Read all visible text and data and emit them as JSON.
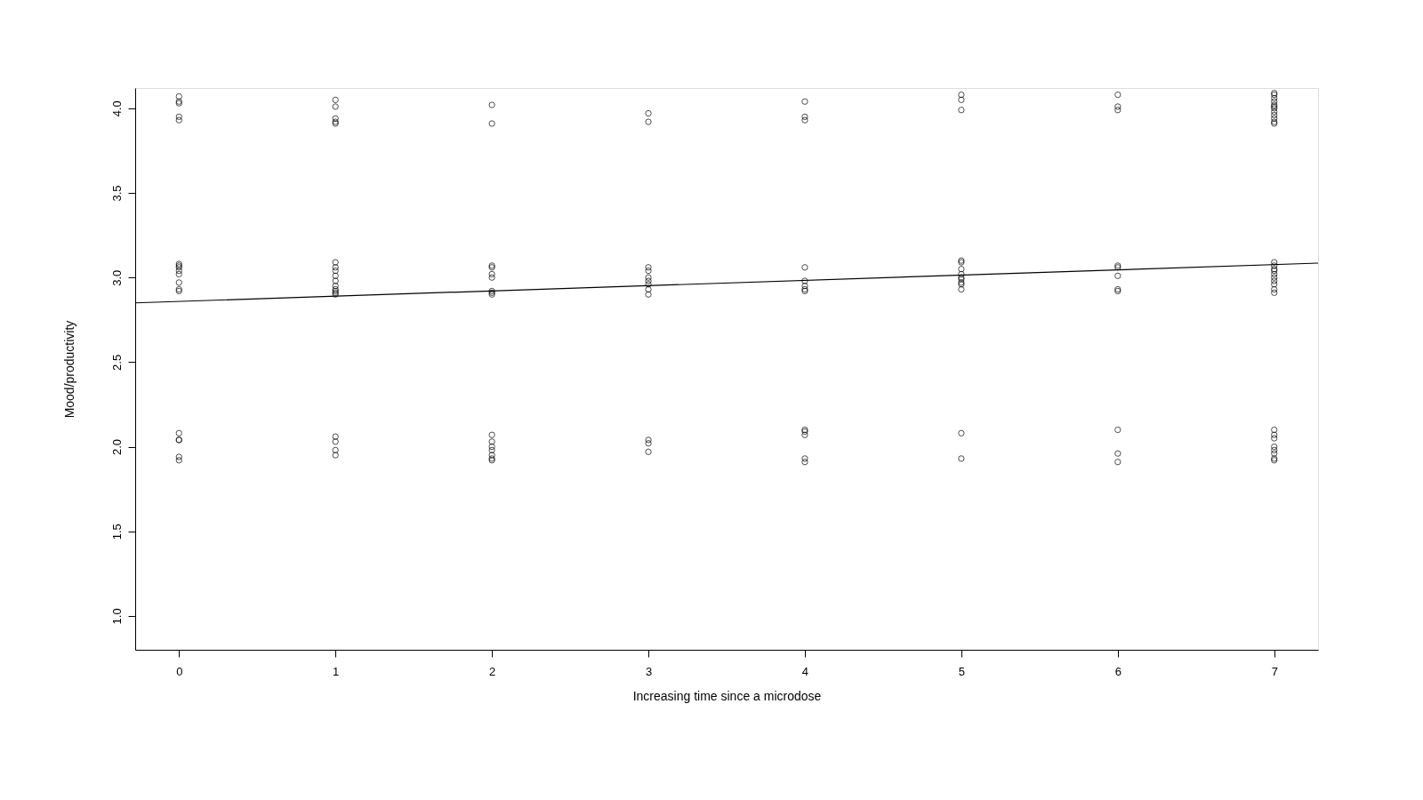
{
  "chart_data": {
    "type": "scatter",
    "xlabel": "Increasing time since a microdose",
    "ylabel": "Mood/productivity",
    "xlim": [
      -0.28,
      7.28
    ],
    "ylim": [
      0.8,
      4.12
    ],
    "xticks": [
      0,
      1,
      2,
      3,
      4,
      5,
      6,
      7
    ],
    "yticks": [
      {
        "value": 1,
        "label": "1.0"
      },
      1.5,
      {
        "value": 2,
        "label": "2.0"
      },
      2.5,
      {
        "value": 3,
        "label": "3.0"
      },
      3.5,
      {
        "value": 4,
        "label": "4.0"
      }
    ],
    "grid": false,
    "series": [
      {
        "color": "#000000",
        "marker": "circle",
        "x": [
          0,
          0,
          0,
          0,
          0,
          0,
          0,
          0,
          0,
          0,
          0,
          0,
          0,
          0,
          0,
          0,
          0,
          0,
          1,
          1,
          1,
          1,
          1,
          1,
          1,
          1,
          1,
          1,
          1,
          1,
          1,
          1,
          1,
          1,
          1,
          1,
          1,
          2,
          2,
          2,
          2,
          2,
          2,
          2,
          2,
          2,
          2,
          2,
          2,
          2,
          2,
          2,
          2,
          3,
          3,
          3,
          3,
          3,
          3,
          3,
          3,
          3,
          3,
          3,
          3,
          4,
          4,
          4,
          4,
          4,
          4,
          4,
          4,
          4,
          4,
          4,
          4,
          4,
          5,
          5,
          5,
          5,
          5,
          5,
          5,
          5,
          5,
          5,
          5,
          5,
          5,
          5,
          6,
          6,
          6,
          6,
          6,
          6,
          6,
          6,
          6,
          6,
          6,
          7,
          7,
          7,
          7,
          7,
          7,
          7,
          7,
          7,
          7,
          7,
          7,
          7,
          7,
          7,
          7,
          7,
          7,
          7,
          7,
          7,
          7,
          7,
          7,
          7,
          7,
          7,
          7,
          7,
          7
        ],
        "values": [
          4.07,
          4.04,
          4.03,
          3.95,
          3.93,
          3.08,
          3.07,
          3.06,
          3.04,
          3.02,
          2.97,
          2.93,
          2.92,
          2.08,
          2.04,
          2.04,
          1.94,
          1.92,
          4.05,
          4.01,
          3.94,
          3.92,
          3.91,
          3.09,
          3.06,
          3.04,
          3.01,
          2.98,
          2.95,
          2.93,
          2.92,
          2.91,
          2.9,
          2.06,
          2.03,
          1.98,
          1.95,
          4.02,
          3.91,
          3.07,
          3.06,
          3.02,
          3.0,
          2.92,
          2.91,
          2.9,
          2.07,
          2.03,
          2.0,
          1.98,
          1.95,
          1.93,
          1.92,
          3.97,
          3.92,
          3.06,
          3.04,
          3.0,
          2.98,
          2.96,
          2.93,
          2.9,
          2.04,
          2.02,
          1.97,
          4.04,
          3.95,
          3.93,
          3.06,
          2.98,
          2.95,
          2.93,
          2.92,
          2.1,
          2.09,
          2.07,
          1.93,
          1.91,
          4.08,
          4.05,
          3.99,
          3.1,
          3.09,
          3.05,
          3.02,
          3.0,
          2.99,
          2.97,
          2.96,
          2.93,
          2.08,
          1.93,
          4.08,
          4.01,
          3.99,
          3.07,
          3.06,
          3.01,
          2.93,
          2.92,
          2.1,
          1.96,
          1.91,
          4.09,
          4.08,
          4.06,
          4.04,
          4.02,
          4.01,
          4.0,
          3.98,
          3.96,
          3.94,
          3.92,
          3.91,
          3.09,
          3.07,
          3.05,
          3.04,
          3.02,
          3.0,
          2.98,
          2.96,
          2.93,
          2.91,
          2.1,
          2.07,
          2.05,
          2.0,
          1.98,
          1.96,
          1.93,
          1.92
        ]
      },
      {
        "type": "line",
        "color": "#000000",
        "x": [
          -0.28,
          7.28
        ],
        "values": [
          2.85,
          3.085
        ]
      }
    ]
  }
}
